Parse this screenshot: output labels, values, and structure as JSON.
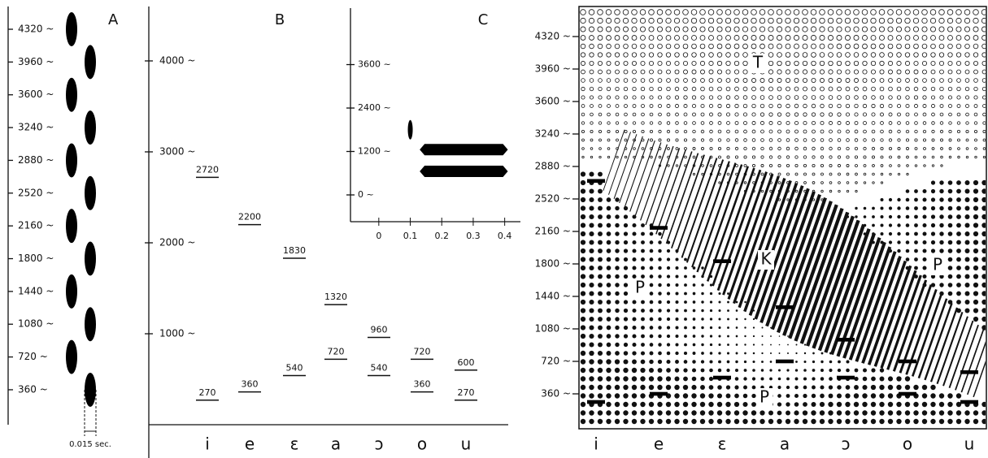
{
  "chart_data": [
    {
      "type": "pulse",
      "title": "A",
      "ylim": [
        -24,
        4570
      ],
      "yticks": [
        {
          "value": 360,
          "label": "360 ~"
        },
        {
          "value": 720,
          "label": "720 ~"
        },
        {
          "value": 1080,
          "label": "1080 ~"
        },
        {
          "value": 1440,
          "label": "1440 ~"
        },
        {
          "value": 1800,
          "label": "1800 ~"
        },
        {
          "value": 2160,
          "label": "2160 ~"
        },
        {
          "value": 2520,
          "label": "2520 ~"
        },
        {
          "value": 2880,
          "label": "2880 ~"
        },
        {
          "value": 3240,
          "label": "3240 ~"
        },
        {
          "value": 3600,
          "label": "3600 ~"
        },
        {
          "value": 3960,
          "label": "3960 ~"
        },
        {
          "value": 4320,
          "label": "4320 ~"
        }
      ],
      "values": [
        360,
        720,
        1080,
        1440,
        1800,
        2160,
        2520,
        2880,
        3240,
        3600,
        3960,
        4320
      ],
      "annotation": "0.015 sec."
    },
    {
      "type": "formant",
      "title": "B",
      "categories": [
        "i",
        "e",
        "ɛ",
        "a",
        "ɔ",
        "o",
        "u"
      ],
      "ylim": [
        0,
        4580
      ],
      "yticks": [
        {
          "value": 1000,
          "label": "1000 ~"
        },
        {
          "value": 2000,
          "label": "2000 ~"
        },
        {
          "value": 3000,
          "label": "3000 ~"
        },
        {
          "value": 4000,
          "label": "4000 ~"
        }
      ],
      "series": [
        {
          "values": [
            270,
            360,
            540,
            720,
            540,
            360,
            270
          ]
        },
        {
          "values": [
            2720,
            2200,
            1830,
            1320,
            960,
            720,
            600
          ]
        }
      ]
    },
    {
      "type": "spectrogram",
      "title": "C",
      "xlim": [
        -0.09,
        0.45
      ],
      "xticks": [
        0,
        0.1,
        0.2,
        0.3,
        0.4
      ],
      "ylim": [
        -740,
        5160
      ],
      "yticks": [
        {
          "value": 0,
          "label": "0 ~"
        },
        {
          "value": 1200,
          "label": "1200 ~"
        },
        {
          "value": 2400,
          "label": "2400 ~"
        },
        {
          "value": 3600,
          "label": "3600 ~"
        }
      ],
      "burst": {
        "x": 0.1,
        "y": 1800
      },
      "bars": [
        {
          "y": 1250,
          "x": [
            0.13,
            0.41
          ]
        },
        {
          "y": 650,
          "x": [
            0.13,
            0.41
          ]
        }
      ]
    },
    {
      "type": "pattern",
      "categories": [
        "i",
        "e",
        "ɛ",
        "a",
        "ɔ",
        "o",
        "u"
      ],
      "ylim": [
        -27,
        4653
      ],
      "yticks": [
        {
          "value": 360,
          "label": "360 ~"
        },
        {
          "value": 720,
          "label": "720 ~"
        },
        {
          "value": 1080,
          "label": "1080 ~"
        },
        {
          "value": 1440,
          "label": "1440 ~"
        },
        {
          "value": 1800,
          "label": "1800 ~"
        },
        {
          "value": 2160,
          "label": "2160 ~"
        },
        {
          "value": 2520,
          "label": "2520 ~"
        },
        {
          "value": 2880,
          "label": "2880 ~"
        },
        {
          "value": 3240,
          "label": "3240 ~"
        },
        {
          "value": 3600,
          "label": "3600 ~"
        },
        {
          "value": 3960,
          "label": "3960 ~"
        },
        {
          "value": 4320,
          "label": "4320 ~"
        }
      ],
      "series": [
        {
          "values": [
            270,
            360,
            540,
            720,
            540,
            360,
            270
          ]
        },
        {
          "values": [
            2720,
            2200,
            1830,
            1320,
            960,
            720,
            600
          ]
        }
      ],
      "annotations": [
        "T",
        "K",
        "P",
        "P",
        "P"
      ]
    }
  ]
}
